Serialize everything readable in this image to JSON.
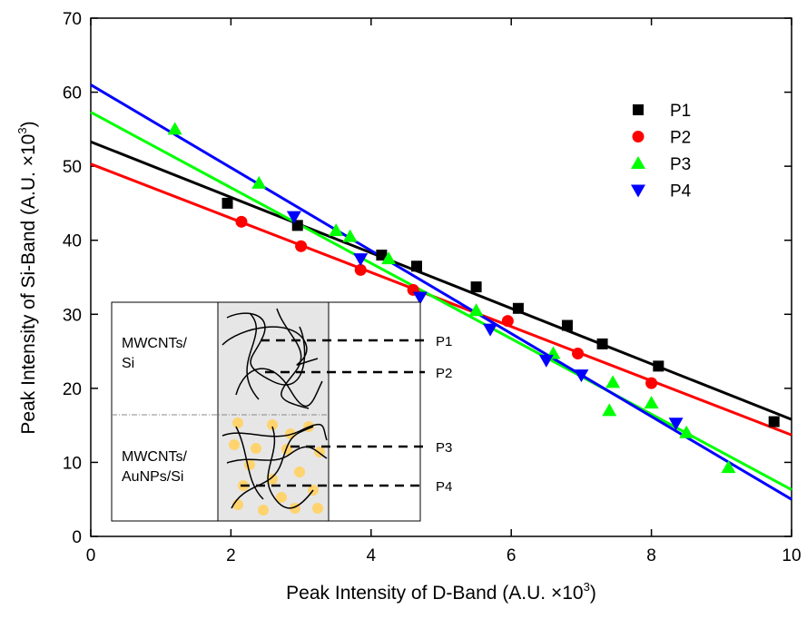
{
  "chart_data": {
    "type": "scatter",
    "x_label": {
      "text": "Peak Intensity of D-Band (A.U. ×10",
      "sup": "3",
      "end": ")"
    },
    "y_label": {
      "text": "Peak Intensity of Si-Band (A.U. ×10",
      "sup": "3",
      "end": ")"
    },
    "xlim": [
      0,
      10
    ],
    "ylim": [
      0,
      70
    ],
    "xticks": [
      0,
      2,
      4,
      6,
      8,
      10
    ],
    "yticks": [
      0,
      10,
      20,
      30,
      40,
      50,
      60,
      70
    ],
    "legend": "upper right",
    "series": [
      {
        "name": "P1",
        "color": "#000000",
        "marker": "square",
        "x": [
          1.95,
          2.95,
          4.15,
          4.65,
          5.5,
          6.1,
          6.8,
          7.3,
          8.1,
          9.75
        ],
        "values": [
          45,
          42,
          38,
          36.5,
          33.7,
          30.8,
          28.5,
          26,
          23,
          15.5
        ],
        "fit": {
          "x": [
            0,
            10
          ],
          "values": [
            53.3,
            15.8
          ]
        }
      },
      {
        "name": "P2",
        "color": "#ff0000",
        "marker": "circle",
        "x": [
          2.15,
          3.0,
          3.85,
          4.6,
          5.95,
          6.95,
          8.0
        ],
        "values": [
          42.5,
          39.2,
          36,
          33.3,
          29.1,
          24.7,
          20.7
        ],
        "fit": {
          "x": [
            0,
            10
          ],
          "values": [
            50.3,
            13.7
          ]
        }
      },
      {
        "name": "P3",
        "color": "#00ff00",
        "marker": "triangle-up",
        "x": [
          1.2,
          2.4,
          3.5,
          3.7,
          4.25,
          5.5,
          6.6,
          7.4,
          7.45,
          8.0,
          8.5,
          9.1
        ],
        "values": [
          55,
          47.7,
          41.3,
          40.5,
          37.5,
          30.5,
          24.7,
          17,
          20.8,
          18,
          14,
          9.3
        ],
        "fit": {
          "x": [
            0,
            10
          ],
          "values": [
            57.3,
            6.3
          ]
        }
      },
      {
        "name": "P4",
        "color": "#0000ff",
        "marker": "triangle-down",
        "x": [
          2.9,
          3.85,
          4.7,
          5.7,
          6.5,
          7.0,
          8.35
        ],
        "values": [
          43.2,
          37.5,
          32.3,
          28,
          23.8,
          21.8,
          15.3
        ],
        "fit": {
          "x": [
            0,
            10
          ],
          "values": [
            61,
            5
          ]
        }
      }
    ],
    "inset": {
      "top_label": [
        "MWCNTs/",
        "Si"
      ],
      "bottom_label": [
        "MWCNTs/",
        "AuNPs/Si"
      ],
      "markers": [
        "P1",
        "P2",
        "P3",
        "P4"
      ]
    }
  }
}
